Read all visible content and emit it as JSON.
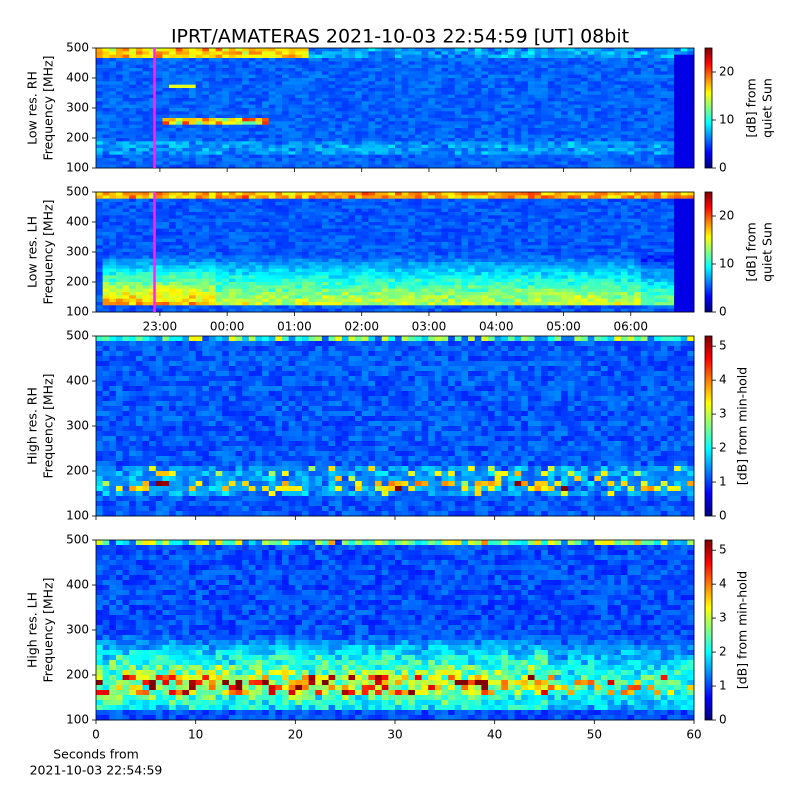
{
  "title": "IPRT/AMATERAS 2021-10-03 22:54:59 [UT]   08bit",
  "chart_data": [
    {
      "type": "spectrogram",
      "ylabel": [
        "Low res. RH",
        "Frequency [MHz]"
      ],
      "ylim": [
        100,
        500
      ],
      "yticks": [
        100,
        200,
        300,
        400,
        500
      ],
      "xlim": [
        22.05,
        30.94
      ],
      "highlight_x": 22.92,
      "highlight_color": "#ff22ff",
      "colormap": "jet",
      "colorbar": {
        "label": [
          "[dB] from",
          "quiet Sun"
        ],
        "lim": [
          0,
          25
        ],
        "ticks": [
          0,
          10,
          20
        ]
      }
    },
    {
      "type": "spectrogram",
      "ylabel": [
        "Low res. LH",
        "Frequency [MHz]"
      ],
      "ylim": [
        100,
        500
      ],
      "yticks": [
        100,
        200,
        300,
        400,
        500
      ],
      "xlim": [
        22.05,
        30.94
      ],
      "highlight_x": 22.92,
      "highlight_color": "#ff22ff",
      "colormap": "jet",
      "xticks": [
        {
          "value": 23,
          "label": "23:00"
        },
        {
          "value": 24,
          "label": "00:00"
        },
        {
          "value": 25,
          "label": "01:00"
        },
        {
          "value": 26,
          "label": "02:00"
        },
        {
          "value": 27,
          "label": "03:00"
        },
        {
          "value": 28,
          "label": "04:00"
        },
        {
          "value": 29,
          "label": "05:00"
        },
        {
          "value": 30,
          "label": "06:00"
        }
      ],
      "colorbar": {
        "label": [
          "[dB] from",
          "quiet Sun"
        ],
        "lim": [
          0,
          25
        ],
        "ticks": [
          0,
          10,
          20
        ]
      }
    },
    {
      "type": "spectrogram",
      "ylabel": [
        "High res. RH",
        "Frequency [MHz]"
      ],
      "ylim": [
        100,
        500
      ],
      "yticks": [
        100,
        200,
        300,
        400,
        500
      ],
      "xlim": [
        0,
        60
      ],
      "colormap": "jet",
      "colorbar": {
        "label": [
          "[dB] from min-hold"
        ],
        "lim": [
          0,
          5.3
        ],
        "ticks": [
          0,
          1,
          2,
          3,
          4,
          5
        ]
      }
    },
    {
      "type": "spectrogram",
      "ylabel": [
        "High res. LH",
        "Frequency [MHz]"
      ],
      "ylim": [
        100,
        500
      ],
      "yticks": [
        100,
        200,
        300,
        400,
        500
      ],
      "xlim": [
        0,
        60
      ],
      "xticks": [
        0,
        10,
        20,
        30,
        40,
        50,
        60
      ],
      "xlabel": [
        "Seconds from",
        "2021-10-03 22:54:59"
      ],
      "colormap": "jet",
      "colorbar": {
        "label": [
          "[dB] from min-hold"
        ],
        "lim": [
          0,
          5.3
        ],
        "ticks": [
          0,
          1,
          2,
          3,
          4,
          5
        ]
      }
    }
  ]
}
